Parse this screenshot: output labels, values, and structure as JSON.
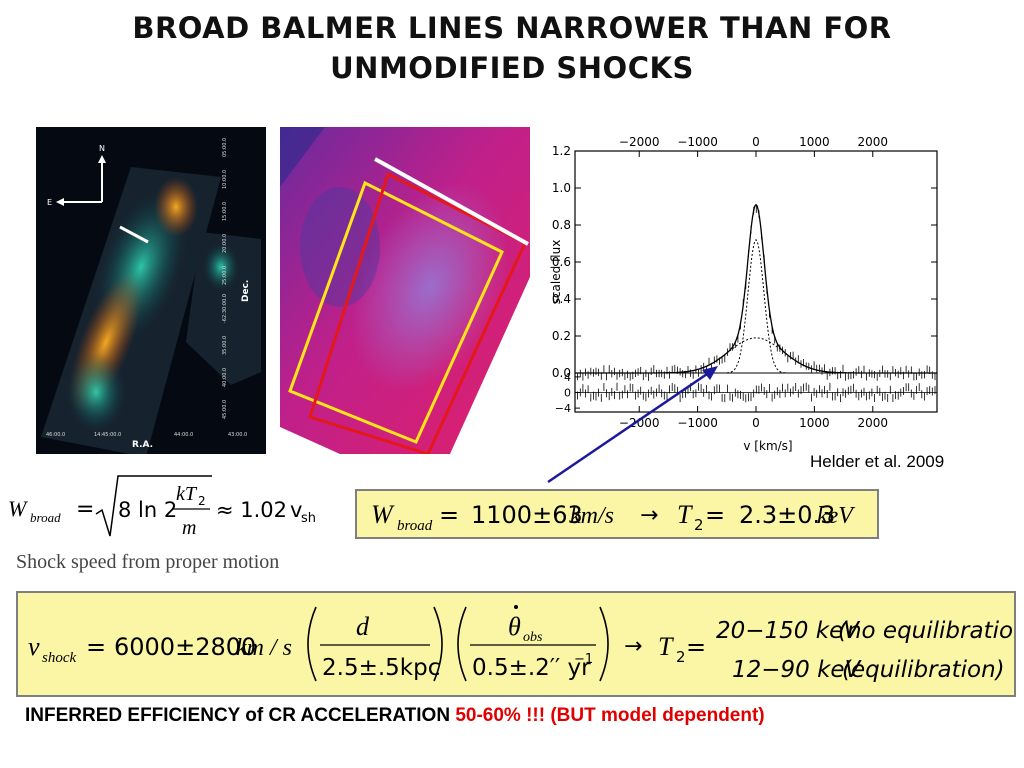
{
  "title": {
    "line1": "BROAD BALMER LINES NARROWER THAN FOR",
    "line2": "UNMODIFIED SHOCKS"
  },
  "image1": {
    "compass_n": "N",
    "compass_e": "E",
    "ra_label": "R.A.",
    "dec_label": "Dec.",
    "ra_ticks": [
      "46:00.0",
      "14:45:00.0",
      "44:00.0",
      "43:00.0"
    ],
    "dec_ticks": [
      "05:00.0",
      "10:00.0",
      "15:00.0",
      "20:00.0",
      "25:00.0",
      "-62:30:00.0",
      "35:00.0",
      "40:00.0",
      "45:00.0"
    ]
  },
  "chart_data": {
    "type": "line",
    "xlabel": "v [km/s]",
    "ylabel": "scaled flux",
    "xlim": [
      -3100,
      3100
    ],
    "ylim": [
      0,
      1.2
    ],
    "x_ticks": [
      -2000,
      -1000,
      0,
      1000,
      2000
    ],
    "y_ticks": [
      0.0,
      0.2,
      0.4,
      0.6,
      0.8,
      1.0,
      1.2
    ],
    "residual_ticks": [
      4,
      0,
      -4
    ],
    "series": [
      {
        "fwhm_kms": 1100,
        "amplitude": 0.19
      },
      {
        "fwhm_kms": 320,
        "amplitude": 0.72
      }
    ]
  },
  "credit": "Helder et al. 2009",
  "formula1": {
    "W": "W",
    "sub": "broad",
    "eq": "=",
    "coef": "8 ln 2",
    "num": "kT",
    "num_sub": "2",
    "den": "m",
    "approx": "≈ 1.02",
    "v": "v",
    "v_sub": "sh"
  },
  "formula2": {
    "W": "W",
    "sub": "broad",
    "eq": "=",
    "value": "1100±63",
    "unit": "km/s",
    "arrow": "→",
    "T": "T",
    "T_sub": "2",
    "eq2": "=",
    "result": "2.3±0.3",
    "result_unit": "keV"
  },
  "shock_speed_label": "Shock speed from proper motion",
  "formula3": {
    "v": "v",
    "sub": "shock",
    "eq": "=",
    "value": "6000±2800",
    "unit": "km / s",
    "frac1_num": "d",
    "frac1_den": "2.5±.5kpc",
    "frac2_num": "θ",
    "frac2_num_sub": "obs",
    "frac2_den": "0.5±.2′′ yr",
    "frac2_den_sup": "−1",
    "arrow": "→",
    "T": "T",
    "T_sub": "2",
    "eq2": "=",
    "case1": "20−150 keV",
    "case1_note": "(no equilibration)",
    "case2": "12−90 keV",
    "case2_note": "(equilibration)"
  },
  "bottom": {
    "prefix": "INFERRED EFFICIENCY of CR ACCELERATION ",
    "highlight": "50-60% !!! (BUT model dependent)"
  },
  "colors": {
    "formula_bg": "#fbf6a6",
    "arrow": "#1a1a9a",
    "highlight": "#e00000"
  }
}
